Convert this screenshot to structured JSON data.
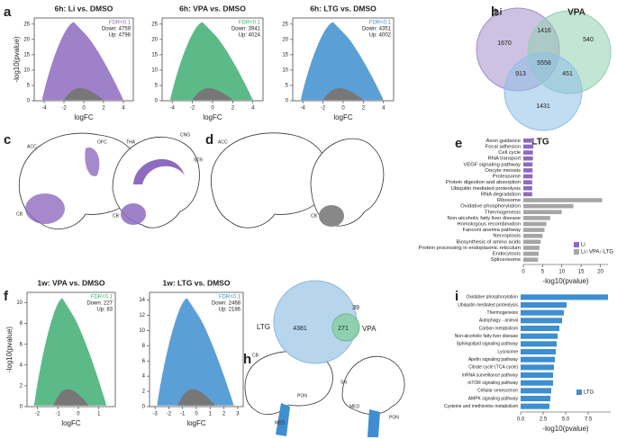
{
  "panel_letters": [
    "a",
    "b",
    "c",
    "d",
    "e",
    "f",
    "g",
    "h",
    "i"
  ],
  "chart_data": [
    {
      "type": "volcano",
      "title": "6h: Li vs. DMSO",
      "fdr": "FDR<0.1",
      "down": "Down: 4759",
      "up": "Up: 4798",
      "xlabel": "logFC",
      "ylabel": "-log10(pvalue)",
      "xlim": [
        -5,
        5
      ],
      "ylim": [
        0,
        27
      ],
      "xticks": [
        -4,
        -2,
        0,
        2,
        4
      ],
      "yticks": [
        0,
        5,
        10,
        15,
        20,
        25
      ],
      "color": "#8e6bbf"
    },
    {
      "type": "volcano",
      "title": "6h: VPA vs. DMSO",
      "fdr": "FDR<0.1",
      "down": "Down: 3941",
      "up": "Up: 4024",
      "xlabel": "logFC",
      "xlim": [
        -5,
        5
      ],
      "ylim": [
        0,
        27
      ],
      "xticks": [
        -4,
        -2,
        0,
        2,
        4
      ],
      "yticks": [
        0,
        5,
        10,
        15,
        20,
        25
      ],
      "color": "#3fae74"
    },
    {
      "type": "volcano",
      "title": "6h: LTG vs. DMSO",
      "fdr": "FDR<0.1",
      "down": "Down: 4351",
      "up": "Up: 4002",
      "xlabel": "logFC",
      "xlim": [
        -5,
        5
      ],
      "ylim": [
        0,
        27
      ],
      "xticks": [
        -4,
        -2,
        0,
        2,
        4
      ],
      "yticks": [
        0,
        5,
        10,
        15,
        20,
        25
      ],
      "color": "#3e8ed0"
    },
    {
      "type": "volcano",
      "title": "1w: VPA vs. DMSO",
      "fdr": "FDR<0.1",
      "down": "Down: 227",
      "up": "Up: 83",
      "xlabel": "logFC",
      "ylabel": "-log10(pvalue)",
      "xlim": [
        -2.5,
        1.8
      ],
      "ylim": [
        0,
        11
      ],
      "xticks": [
        -2,
        -1,
        0,
        1
      ],
      "yticks": [
        0,
        2,
        4,
        6,
        8,
        10
      ],
      "color": "#3fae74"
    },
    {
      "type": "volcano",
      "title": "1w: LTG vs. DMSO",
      "fdr": "FDR<0.1",
      "down": "Down: 2468",
      "up": "Up: 2186",
      "xlabel": "logFC",
      "xlim": [
        -3.4,
        3.4
      ],
      "ylim": [
        0,
        15
      ],
      "xticks": [
        -3,
        -2,
        -1,
        0,
        1,
        2,
        3
      ],
      "yticks": [
        0,
        2,
        4,
        6,
        8,
        10,
        12,
        14
      ],
      "color": "#3e8ed0"
    },
    {
      "type": "venn3",
      "sets": [
        "Li",
        "VPA",
        "LTG"
      ],
      "colors": [
        "#a58fcc",
        "#8fd0b0",
        "#8fc0e6"
      ],
      "counts": [
        1670,
        1416,
        540,
        913,
        5558,
        451,
        1431
      ]
    },
    {
      "type": "hbar",
      "categories": [
        "Axon guidance",
        "Focal adhesion",
        "Cell cycle",
        "RNA transport",
        "VEGF signaling pathway",
        "Oocyte meiosis",
        "Proteasome",
        "Protein digestion and absorption",
        "Ubiquitin mediated proteolysis",
        "RNA degradation",
        "Ribosome",
        "Oxidative phosphorylation",
        "Thermogenesis",
        "Non-alcoholic fatty liver disease",
        "Homologous recombination",
        "Fanconi anemia pathway",
        "Necroptosis",
        "Biosynthesis of amino acids",
        "Protein processing in endoplasmic reticulum",
        "Endocytosis",
        "Spliceosome"
      ],
      "series": [
        {
          "name": "Li",
          "color": "#8e6bbf",
          "values": [
            2.6,
            2.6,
            2.5,
            2.5,
            2.4,
            2.4,
            2.4,
            2.3,
            2.3,
            2.3,
            null,
            null,
            null,
            null,
            null,
            null,
            null,
            null,
            null,
            null,
            null
          ]
        },
        {
          "name": "Li∩VPA∩LTG",
          "color": "#a6a6a6",
          "values": [
            null,
            null,
            null,
            null,
            null,
            null,
            null,
            null,
            null,
            null,
            20.5,
            13,
            10,
            7,
            6,
            5.5,
            5,
            4.5,
            4.2,
            4,
            3.8
          ]
        }
      ],
      "xlabel": "-log10(pvalue)",
      "xlim": [
        0,
        22
      ],
      "xticks": [
        0,
        5,
        10,
        15,
        20
      ]
    },
    {
      "type": "venn2",
      "sets": [
        "LTG",
        "VPA"
      ],
      "colors": [
        "#b7d6ee",
        "#8fd0b0"
      ],
      "counts": [
        4381,
        271,
        39
      ]
    },
    {
      "type": "hbar",
      "categories": [
        "Oxidative phosphorylation",
        "Ubiquitin mediated proteolysis",
        "Thermogenesis",
        "Autophagy - animal",
        "Carbon metabolism",
        "Non-alcoholic fatty liver disease",
        "Sphingolipid signaling pathway",
        "Lysosome",
        "Apelin signaling pathway",
        "Citrate cycle (TCA cycle)",
        "mRNA surveillance pathway",
        "mTOR signaling pathway",
        "Cellular senescence",
        "AMPK signaling pathway",
        "Cysteine and methionine metabolism"
      ],
      "series": [
        {
          "name": "LTG",
          "color": "#3e8ed0",
          "values": [
            9.7,
            5.1,
            4.8,
            4.6,
            4.3,
            4.1,
            4.0,
            3.9,
            3.8,
            3.7,
            3.6,
            3.6,
            3.4,
            3.3,
            3.2
          ]
        }
      ],
      "xlabel": "-log10(pvalue)",
      "xlim": [
        0,
        10
      ],
      "xticks": [
        {
          "value": 0,
          "label": "0.0"
        },
        {
          "value": 2.5,
          "label": "2.5"
        },
        {
          "value": 5,
          "label": "5.0"
        },
        {
          "value": 7.5,
          "label": "7.5"
        }
      ]
    }
  ],
  "brain_labels": {
    "c": [
      "ACC",
      "OFC",
      "CB",
      "THA",
      "CNG",
      "STR",
      "CB"
    ],
    "d": [
      "ACC",
      "CB"
    ],
    "h": [
      "CB",
      "PON",
      "MED",
      "SN",
      "MED",
      "PON"
    ]
  }
}
